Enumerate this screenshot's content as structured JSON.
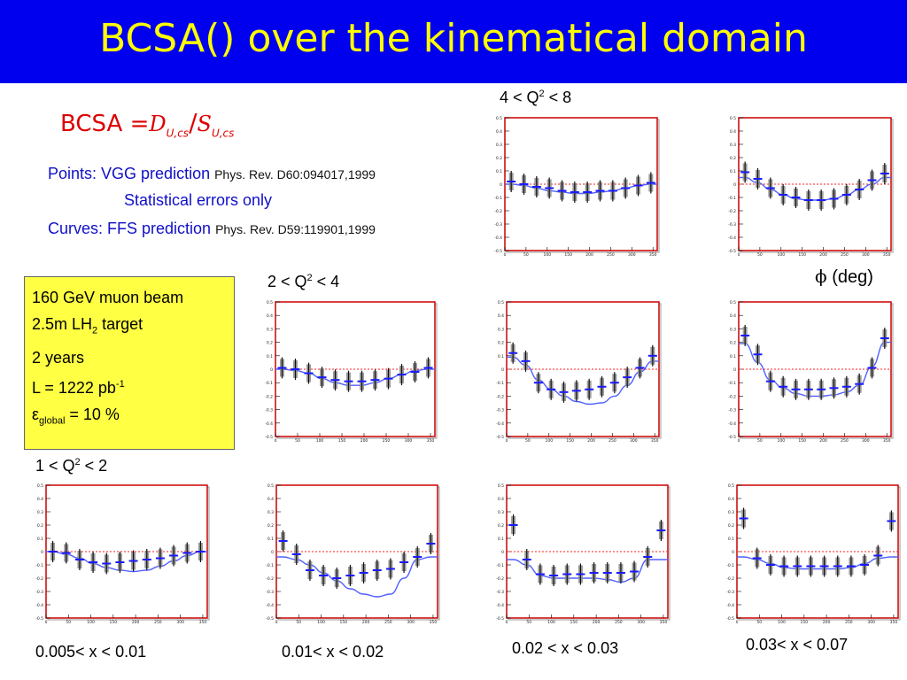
{
  "slide": {
    "title": "BCSA(\u0001) over the kinematical domain",
    "formula": {
      "lhs": "BCSA =",
      "num": "D",
      "num_sub": "U,cs",
      "slash": "/",
      "den": "S",
      "den_sub": "U,cs"
    },
    "notes": [
      {
        "text": "Points:  VGG prediction ",
        "ref": "Phys. Rev. D60:094017,1999"
      },
      {
        "text": "Statistical errors only",
        "ref": ""
      },
      {
        "text": "Curves:  FFS prediction ",
        "ref": "Phys. Rev. D59:119901,1999"
      }
    ],
    "info_box": {
      "line1": "160 GeV muon beam",
      "line2_pre": "2.5m LH",
      "line2_sub": "2",
      "line2_post": " target",
      "line3": "2 years",
      "line4_pre": "L = 1222 pb",
      "line4_sup": "-1",
      "line5_pre": "ε",
      "line5_sub": "global",
      "line5_post": " = 10 %"
    },
    "q2_labels": [
      {
        "pre": "4 < Q",
        "sup": "2",
        "post": " < 8"
      },
      {
        "pre": "2 < Q",
        "sup": "2",
        "post": " < 4"
      },
      {
        "pre": "1 < Q",
        "sup": "2",
        "post": " < 2"
      }
    ],
    "x_labels": [
      "0.005< x < 0.01",
      "0.01< x < 0.02",
      "0.02 < x < 0.03",
      "0.03< x < 0.07"
    ],
    "phi_label": {
      "symbol": "ϕ",
      "text": " (deg)"
    }
  },
  "chart_data": {
    "type": "scatter",
    "xlabel": "ϕ (deg)",
    "xlim": [
      0,
      360
    ],
    "ylim": [
      -0.5,
      0.5
    ],
    "x_ticks": [
      0,
      50,
      100,
      150,
      200,
      250,
      300,
      350
    ],
    "y_ticks": [
      0.5,
      0.4,
      0.3,
      0.2,
      0.1,
      0,
      -0.1,
      -0.2,
      -0.3,
      -0.4,
      -0.5
    ],
    "zero_line": {
      "y": 0,
      "color": "#ff2222",
      "style": "dotted"
    },
    "colors": {
      "points": "#1a1aff",
      "curve": "#5060ff",
      "stat_band": "#8a8a8a",
      "frame": "#cc0000"
    },
    "phi": [
      15,
      45,
      75,
      105,
      135,
      165,
      195,
      225,
      255,
      285,
      315,
      345
    ],
    "panels": [
      {
        "q2": "4 < Q2 < 8",
        "x_bin": "0.02 < x < 0.03",
        "points": [
          0.02,
          0.0,
          -0.02,
          -0.03,
          -0.05,
          -0.06,
          -0.06,
          -0.05,
          -0.05,
          -0.03,
          -0.01,
          0.01
        ],
        "curve": [
          0.0,
          -0.01,
          -0.03,
          -0.05,
          -0.06,
          -0.07,
          -0.07,
          -0.06,
          -0.05,
          -0.03,
          -0.01,
          0.0
        ]
      },
      {
        "q2": "4 < Q2 < 8",
        "x_bin": "0.03< x < 0.07",
        "points": [
          0.09,
          0.04,
          -0.03,
          -0.08,
          -0.1,
          -0.12,
          -0.12,
          -0.11,
          -0.08,
          -0.04,
          0.03,
          0.08
        ],
        "curve": [
          0.05,
          0.01,
          -0.04,
          -0.08,
          -0.11,
          -0.12,
          -0.12,
          -0.11,
          -0.08,
          -0.04,
          0.0,
          0.05
        ]
      },
      {
        "q2": "2 < Q2 < 4",
        "x_bin": "0.01< x < 0.02",
        "points": [
          0.01,
          0.0,
          -0.03,
          -0.06,
          -0.08,
          -0.09,
          -0.09,
          -0.08,
          -0.07,
          -0.04,
          -0.02,
          0.01
        ],
        "curve": [
          0.0,
          -0.01,
          -0.03,
          -0.07,
          -0.1,
          -0.12,
          -0.12,
          -0.1,
          -0.07,
          -0.04,
          -0.01,
          0.0
        ]
      },
      {
        "q2": "2 < Q2 < 4",
        "x_bin": "0.02 < x < 0.03",
        "points": [
          0.12,
          0.06,
          -0.1,
          -0.15,
          -0.17,
          -0.16,
          -0.15,
          -0.13,
          -0.1,
          -0.06,
          0.01,
          0.1
        ],
        "curve": [
          0.09,
          0.03,
          -0.08,
          -0.15,
          -0.2,
          -0.24,
          -0.26,
          -0.25,
          -0.2,
          -0.12,
          -0.02,
          0.06
        ]
      },
      {
        "q2": "2 < Q2 < 4",
        "x_bin": "0.03< x < 0.07",
        "points": [
          0.25,
          0.11,
          -0.09,
          -0.13,
          -0.15,
          -0.15,
          -0.15,
          -0.14,
          -0.13,
          -0.11,
          0.01,
          0.23
        ],
        "curve": [
          0.19,
          0.05,
          -0.08,
          -0.14,
          -0.18,
          -0.2,
          -0.2,
          -0.19,
          -0.17,
          -0.12,
          0.02,
          0.2
        ]
      },
      {
        "q2": "1 < Q2 < 2",
        "x_bin": "0.005< x < 0.01",
        "points": [
          0.0,
          -0.01,
          -0.06,
          -0.08,
          -0.09,
          -0.08,
          -0.07,
          -0.06,
          -0.05,
          -0.03,
          -0.01,
          0.0
        ],
        "curve": [
          0.0,
          -0.02,
          -0.05,
          -0.09,
          -0.12,
          -0.14,
          -0.15,
          -0.14,
          -0.11,
          -0.07,
          -0.03,
          0.0
        ]
      },
      {
        "q2": "1 < Q2 < 2",
        "x_bin": "0.01< x < 0.02",
        "points": [
          0.08,
          -0.02,
          -0.14,
          -0.18,
          -0.2,
          -0.18,
          -0.16,
          -0.14,
          -0.13,
          -0.08,
          -0.04,
          0.06
        ],
        "curve": [
          -0.04,
          -0.06,
          -0.1,
          -0.16,
          -0.22,
          -0.28,
          -0.32,
          -0.34,
          -0.32,
          -0.2,
          -0.06,
          -0.04
        ]
      },
      {
        "q2": "1 < Q2 < 2",
        "x_bin": "0.02 < x < 0.03",
        "points": [
          0.2,
          -0.06,
          -0.17,
          -0.18,
          -0.17,
          -0.17,
          -0.16,
          -0.16,
          -0.16,
          -0.15,
          -0.04,
          0.16
        ],
        "curve": [
          -0.06,
          -0.1,
          -0.18,
          -0.2,
          -0.2,
          -0.2,
          -0.2,
          -0.21,
          -0.23,
          -0.2,
          -0.06,
          -0.06
        ]
      },
      {
        "q2": "1 < Q2 < 2",
        "x_bin": "0.03< x < 0.07",
        "points": [
          0.25,
          -0.05,
          -0.1,
          -0.11,
          -0.11,
          -0.11,
          -0.11,
          -0.11,
          -0.11,
          -0.1,
          -0.03,
          0.23
        ],
        "curve": [
          -0.04,
          -0.06,
          -0.09,
          -0.12,
          -0.13,
          -0.13,
          -0.13,
          -0.13,
          -0.12,
          -0.09,
          -0.05,
          -0.04
        ]
      }
    ]
  }
}
